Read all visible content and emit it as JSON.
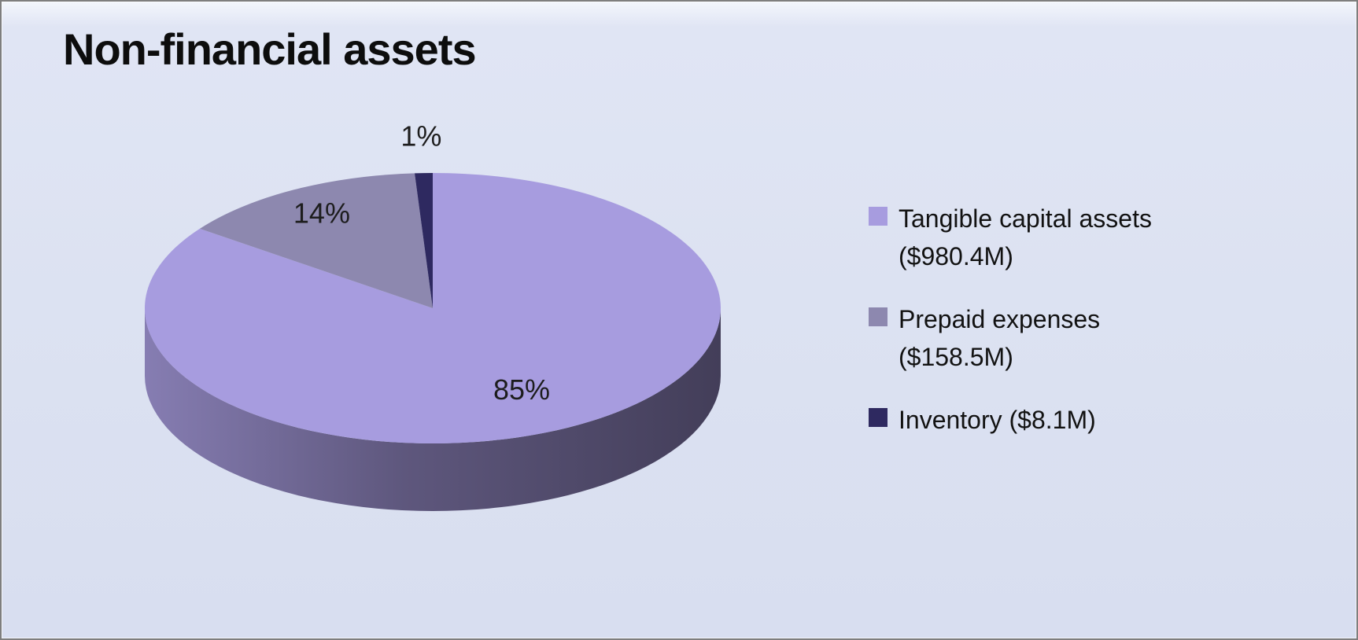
{
  "title": "Non-financial assets",
  "chart_data": {
    "type": "pie",
    "title": "Non-financial assets",
    "effect": "3d",
    "start_angle_deg": 0,
    "direction": "clockwise",
    "legend_position": "right",
    "background_color": "#dbe1f1",
    "slices": [
      {
        "name": "Tangible capital assets",
        "amount": "$980.4M",
        "label": "Tangible capital assets ($980.4M)",
        "percent": 85,
        "percent_label": "85%",
        "color": "#a79cdf"
      },
      {
        "name": "Prepaid expenses",
        "amount": "$158.5M",
        "label": "Prepaid expenses ($158.5M)",
        "percent": 14,
        "percent_label": "14%",
        "color": "#8d88af"
      },
      {
        "name": "Inventory",
        "amount": "$8.1M",
        "label": "Inventory ($8.1M)",
        "percent": 1,
        "percent_label": "1%",
        "color": "#2e2960"
      }
    ]
  }
}
